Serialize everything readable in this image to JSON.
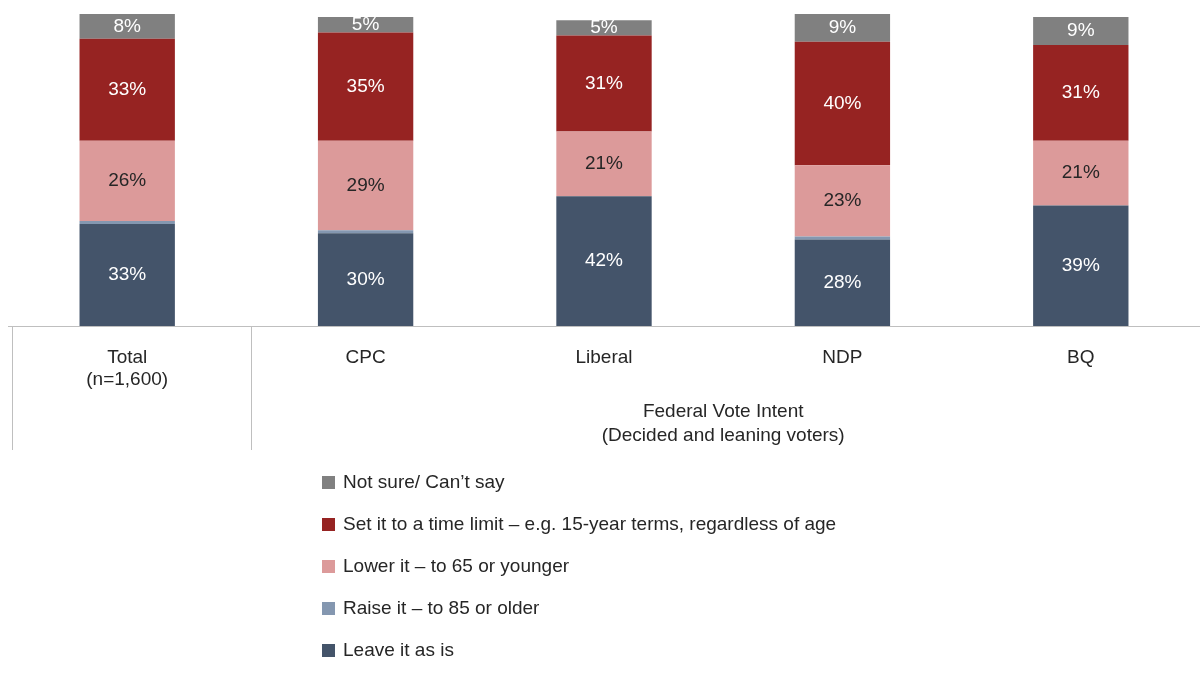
{
  "chart_data": {
    "type": "bar",
    "stacked": true,
    "categories": [
      "Total\n(n=1,600)",
      "CPC",
      "Liberal",
      "NDP",
      "BQ"
    ],
    "annotations": [
      "Federal Vote Intent\n(Decided and leaning voters)"
    ],
    "ylim": [
      0,
      101
    ],
    "tick_labels": "x",
    "grid": false,
    "legend": "bottom",
    "series": [
      {
        "name": "Leave it as is",
        "color": "#44546a",
        "values": [
          33,
          30,
          42,
          28,
          39
        ],
        "value_labels": [
          "33%",
          "30%",
          "42%",
          "28%",
          "39%"
        ]
      },
      {
        "name": "Raise it – to 85 or older",
        "color": "#8497b0",
        "values": [
          1,
          1,
          0,
          1,
          0
        ],
        "value_labels": [
          null,
          null,
          null,
          null,
          null
        ]
      },
      {
        "name": "Lower it – to 65 or younger",
        "color": "#dc9a9a",
        "values": [
          26,
          29,
          21,
          23,
          21
        ],
        "value_labels": [
          "26%",
          "29%",
          "21%",
          "23%",
          "21%"
        ]
      },
      {
        "name": "Set it to a time limit – e.g. 15-year terms, regardless of age",
        "color": "#962322",
        "values": [
          33,
          35,
          31,
          40,
          31
        ],
        "value_labels": [
          "33%",
          "35%",
          "31%",
          "40%",
          "31%"
        ]
      },
      {
        "name": "Not sure/ Can’t say",
        "color": "#808080",
        "values": [
          8,
          5,
          5,
          9,
          9
        ],
        "value_labels": [
          "8%",
          "5%",
          "5%",
          "9%",
          "9%"
        ]
      }
    ]
  }
}
